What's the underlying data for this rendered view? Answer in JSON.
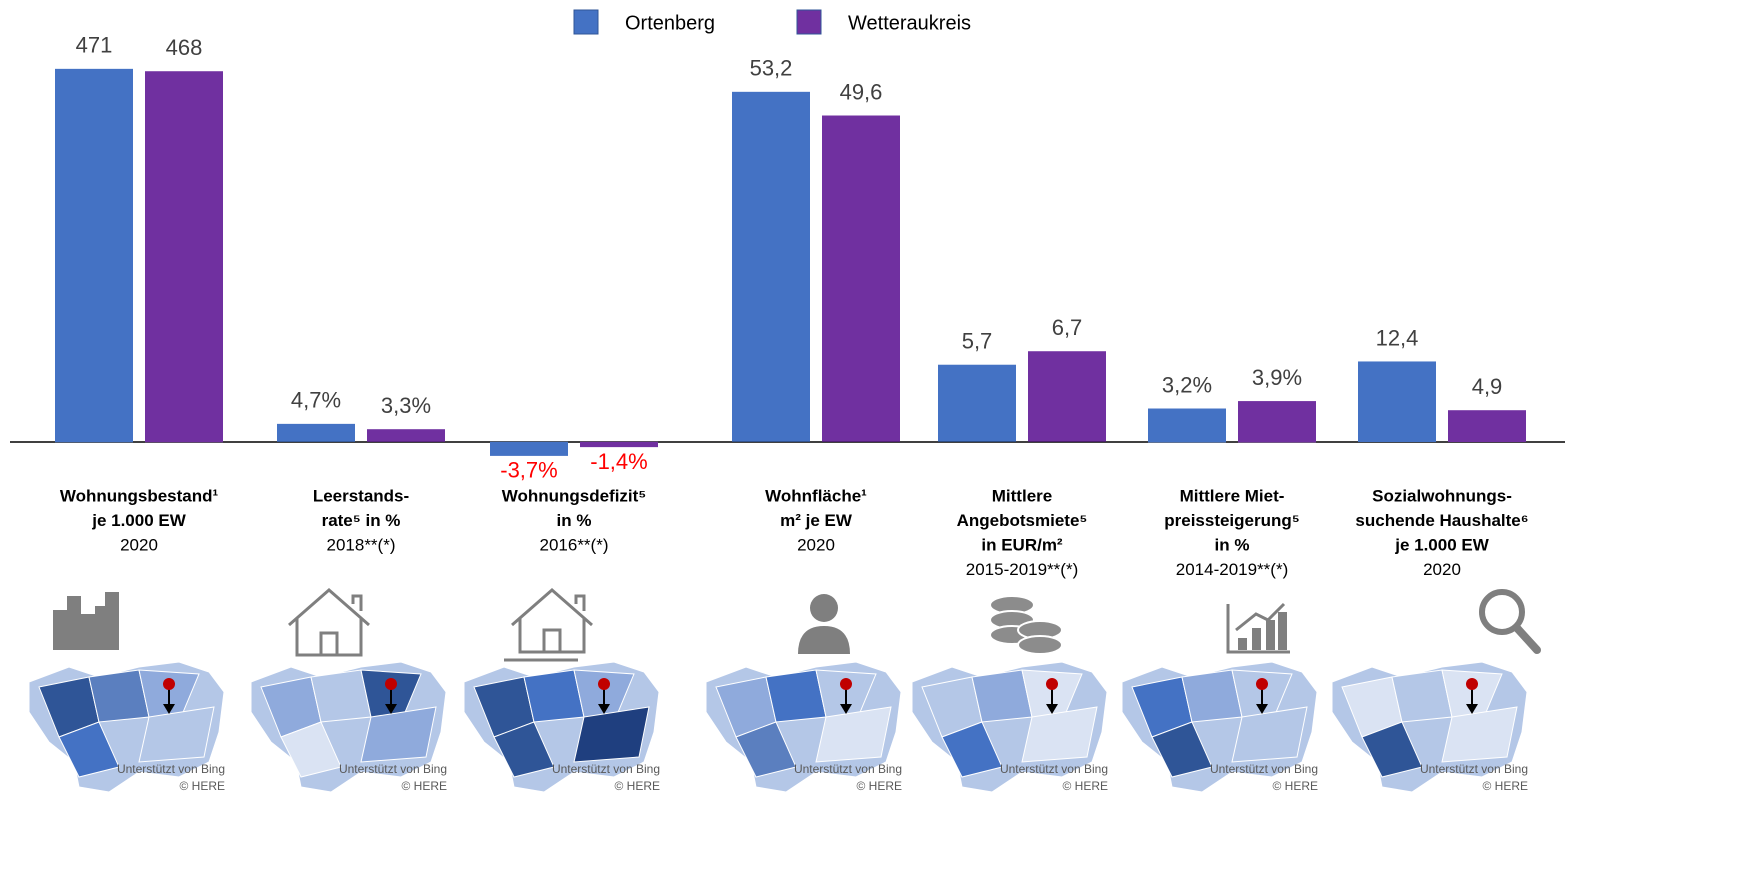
{
  "legend": [
    {
      "name": "Ortenberg",
      "color": "#4472c4"
    },
    {
      "name": "Wetteraukreis",
      "color": "#7030a0"
    }
  ],
  "map_credit": [
    "Unterstützt von Bing",
    "© HERE"
  ],
  "negative_label_color": "#ff0000",
  "chart_data": [
    {
      "type": "bar",
      "title": [
        "Wohnungsbestand¹",
        "je 1.000 EW"
      ],
      "subtitle": [
        "2020"
      ],
      "values": [
        471,
        468
      ],
      "ylim": [
        -35,
        520
      ]
    },
    {
      "type": "bar",
      "title": [
        "Leerstands-",
        "rate⁵ in %"
      ],
      "subtitle": [
        "2018**(*)"
      ],
      "values": [
        4.7,
        3.3
      ],
      "value_labels": [
        "4,7%",
        "3,3%"
      ],
      "ylim": [
        -7.4,
        108
      ]
    },
    {
      "type": "bar",
      "title": [
        "Wohnungsdefizit⁵",
        "in %"
      ],
      "subtitle": [
        "2016**(*)"
      ],
      "values": [
        -3.7,
        -1.4
      ],
      "value_labels": [
        "-3,7%",
        "-1,4%"
      ],
      "ylim": [
        -7.4,
        108
      ]
    },
    {
      "type": "bar",
      "title": [
        "Wohnfläche¹",
        "m² je EW"
      ],
      "subtitle": [
        "2020"
      ],
      "values": [
        53.2,
        49.6
      ],
      "value_labels": [
        "53,2",
        "49,6"
      ],
      "ylim": [
        -4.3,
        62.6
      ]
    },
    {
      "type": "bar",
      "title": [
        "Mittlere",
        "Angebotsmiete⁵",
        "in EUR/m²"
      ],
      "subtitle": [
        "2015-2019**(*)"
      ],
      "values": [
        5.7,
        6.7
      ],
      "value_labels": [
        "5,7",
        "6,7"
      ],
      "ylim": [
        -2.1,
        30.5
      ]
    },
    {
      "type": "bar",
      "title": [
        "Mittlere Miet-",
        "preissteigerung⁵",
        "in %"
      ],
      "subtitle": [
        "2014-2019**(*)"
      ],
      "values": [
        3.2,
        3.9
      ],
      "value_labels": [
        "3,2%",
        "3,9%"
      ],
      "ylim": [
        -2.6,
        38.9
      ]
    },
    {
      "type": "bar",
      "title": [
        "Sozialwohnungs-",
        "suchende Haushalte⁶",
        "je 1.000 EW"
      ],
      "subtitle": [
        "2020"
      ],
      "values": [
        12.4,
        4.9
      ],
      "value_labels": [
        "12,4",
        "4,9"
      ],
      "ylim": [
        -4.3,
        63.4
      ]
    }
  ]
}
